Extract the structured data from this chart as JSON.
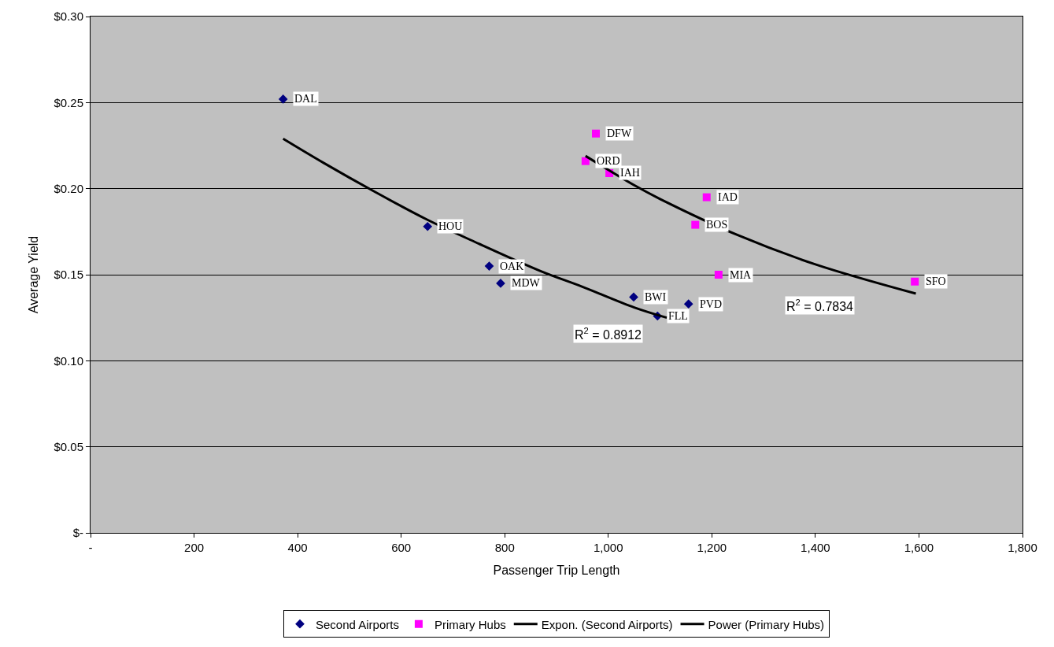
{
  "chart_data": {
    "type": "scatter",
    "xlabel": "Passenger Trip Length",
    "ylabel": "Average Yield",
    "series": [
      {
        "name": "Second Airports",
        "color": "#000080",
        "marker": "diamond",
        "x": [
          372,
          651,
          770,
          792,
          1049,
          1095,
          1155
        ],
        "values": [
          0.252,
          0.178,
          0.155,
          0.145,
          0.137,
          0.126,
          0.133
        ]
      },
      {
        "name": "Primary Hubs",
        "color": "#ff00ff",
        "marker": "square",
        "x": [
          976,
          956,
          1002,
          1190,
          1168,
          1213,
          1592
        ],
        "values": [
          0.232,
          0.216,
          0.209,
          0.195,
          0.179,
          0.15,
          0.146
        ]
      },
      {
        "name": "Expon. (Second Airports)",
        "type": "line",
        "color": "#000000",
        "marker": "none",
        "x": [
          372,
          450,
          550,
          650,
          750,
          870,
          950,
          1050,
          1113
        ],
        "values": [
          0.229,
          0.215,
          0.198,
          0.182,
          0.168,
          0.152,
          0.143,
          0.131,
          0.125
        ]
      },
      {
        "name": "Power (Primary Hubs)",
        "type": "line",
        "color": "#000000",
        "marker": "none",
        "x": [
          956,
          1050,
          1100,
          1250,
          1400,
          1594
        ],
        "values": [
          0.219,
          0.202,
          0.194,
          0.173,
          0.156,
          0.139
        ]
      }
    ],
    "annotations": [
      {
        "text": "DAL",
        "x": 372,
        "y": 0.252
      },
      {
        "text": "HOU",
        "x": 651,
        "y": 0.178
      },
      {
        "text": "OAK",
        "x": 770,
        "y": 0.155
      },
      {
        "text": "MDW",
        "x": 792,
        "y": 0.145
      },
      {
        "text": "BWI",
        "x": 1049,
        "y": 0.137
      },
      {
        "text": "FLL",
        "x": 1095,
        "y": 0.126
      },
      {
        "text": "PVD",
        "x": 1155,
        "y": 0.133
      },
      {
        "text": "DFW",
        "x": 976,
        "y": 0.232
      },
      {
        "text": "ORD",
        "x": 956,
        "y": 0.216
      },
      {
        "text": "IAH",
        "x": 1002,
        "y": 0.209
      },
      {
        "text": "IAD",
        "x": 1190,
        "y": 0.195
      },
      {
        "text": "BOS",
        "x": 1168,
        "y": 0.179
      },
      {
        "text": "MIA",
        "x": 1213,
        "y": 0.15
      },
      {
        "text": "SFO",
        "x": 1592,
        "y": 0.146
      },
      "R$^{2}$ = 0.8912",
      "R$^{2}$ = 0.7834"
    ],
    "xlim": [
      0,
      1800
    ],
    "xticks": [
      {
        "value": 0,
        "label": "-"
      },
      200,
      400,
      600,
      800,
      {
        "value": 1000,
        "label": "1,000"
      },
      {
        "value": 1200,
        "label": "1,200"
      },
      {
        "value": 1400,
        "label": "1,400"
      },
      {
        "value": 1600,
        "label": "1,600"
      },
      {
        "value": 1800,
        "label": "1,800"
      }
    ],
    "ylim": [
      0,
      0.3
    ],
    "yticks": [
      {
        "value": 0,
        "label": "$-"
      },
      {
        "value": 0.05,
        "label": "$0.05"
      },
      {
        "value": 0.1,
        "label": "$0.10"
      },
      {
        "value": 0.15,
        "label": "$0.15"
      },
      {
        "value": 0.2,
        "label": "$0.20"
      },
      {
        "value": 0.25,
        "label": "$0.25"
      },
      {
        "value": 0.3,
        "label": "$0.30"
      }
    ],
    "grid": "y",
    "legend": "bottom"
  }
}
